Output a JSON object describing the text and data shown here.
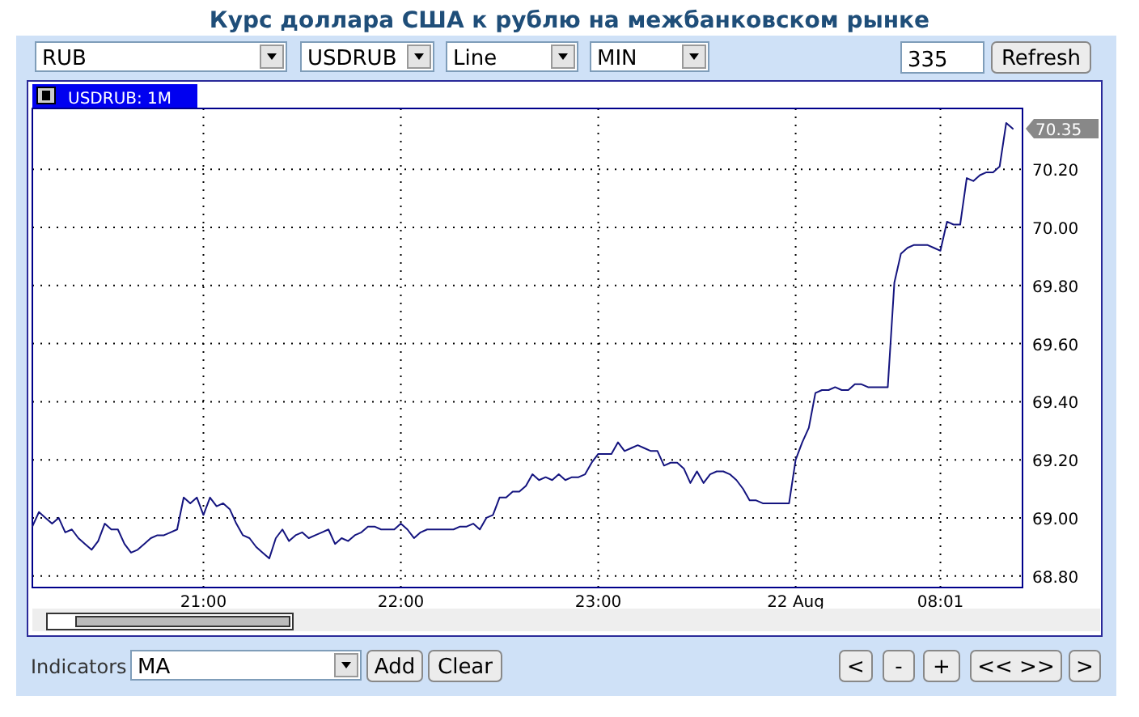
{
  "chart_data": {
    "type": "line",
    "title": "Курс доллара США к рублю на межбанковском рынке",
    "categories": [
      null,
      null,
      null,
      null,
      null,
      null,
      null,
      null,
      null,
      null,
      null,
      null,
      null,
      null,
      null,
      null,
      null,
      null,
      null,
      null,
      null,
      null,
      null,
      null,
      null,
      null,
      "21:00",
      null,
      null,
      null,
      null,
      null,
      null,
      null,
      null,
      null,
      null,
      null,
      null,
      null,
      null,
      null,
      null,
      null,
      null,
      null,
      null,
      null,
      null,
      null,
      null,
      null,
      null,
      null,
      null,
      null,
      "22:00",
      null,
      null,
      null,
      null,
      null,
      null,
      null,
      null,
      null,
      null,
      null,
      null,
      null,
      null,
      null,
      null,
      null,
      null,
      null,
      null,
      null,
      null,
      null,
      null,
      null,
      null,
      null,
      null,
      null,
      "23:00",
      null,
      null,
      null,
      null,
      null,
      null,
      null,
      null,
      null,
      null,
      null,
      null,
      null,
      null,
      null,
      null,
      null,
      null,
      null,
      null,
      null,
      null,
      null,
      null,
      null,
      null,
      null,
      null,
      null,
      "22 Aug",
      null,
      null,
      null,
      null,
      null,
      null,
      null,
      null,
      null,
      null,
      null,
      null,
      null,
      null,
      null,
      null,
      null,
      null,
      null,
      null,
      null,
      "08:01",
      null,
      null,
      null,
      null,
      null,
      null,
      null,
      null,
      null,
      null,
      null
    ],
    "series": [
      {
        "color": "#14147f",
        "values": [
          68.97,
          69.02,
          69.0,
          68.98,
          69.0,
          68.95,
          68.96,
          68.93,
          68.91,
          68.89,
          68.92,
          68.98,
          68.96,
          68.96,
          68.91,
          68.88,
          68.89,
          68.91,
          68.93,
          68.94,
          68.94,
          68.95,
          68.96,
          69.07,
          69.05,
          69.07,
          69.01,
          69.07,
          69.04,
          69.05,
          69.03,
          68.98,
          68.94,
          68.93,
          68.9,
          68.88,
          68.86,
          68.93,
          68.96,
          68.92,
          68.94,
          68.95,
          68.93,
          68.94,
          68.95,
          68.96,
          68.91,
          68.93,
          68.92,
          68.94,
          68.95,
          68.97,
          68.97,
          68.96,
          68.96,
          68.96,
          68.98,
          68.96,
          68.93,
          68.95,
          68.96,
          68.96,
          68.96,
          68.96,
          68.96,
          68.97,
          68.97,
          68.98,
          68.96,
          69.0,
          69.01,
          69.07,
          69.07,
          69.09,
          69.09,
          69.11,
          69.15,
          69.13,
          69.14,
          69.13,
          69.15,
          69.13,
          69.14,
          69.14,
          69.15,
          69.19,
          69.22,
          69.22,
          69.22,
          69.26,
          69.23,
          69.24,
          69.25,
          69.24,
          69.23,
          69.23,
          69.18,
          69.19,
          69.19,
          69.17,
          69.12,
          69.16,
          69.12,
          69.15,
          69.16,
          69.16,
          69.15,
          69.13,
          69.1,
          69.06,
          69.06,
          69.05,
          69.05,
          69.05,
          69.05,
          69.05,
          69.2,
          69.26,
          69.31,
          69.43,
          69.44,
          69.44,
          69.45,
          69.44,
          69.44,
          69.46,
          69.46,
          69.45,
          69.45,
          69.45,
          69.45,
          69.81,
          69.91,
          69.93,
          69.94,
          69.94,
          69.94,
          69.93,
          69.92,
          70.02,
          70.01,
          70.01,
          70.17,
          70.16,
          70.18,
          70.19,
          70.19,
          70.21,
          70.36,
          70.34
        ]
      }
    ],
    "ylim": [
      68.76,
      70.41
    ],
    "yticks": [
      {
        "value": 68.8,
        "label": "68.80"
      },
      {
        "value": 69.0,
        "label": "69.00"
      },
      {
        "value": 69.2,
        "label": "69.20"
      },
      {
        "value": 69.4,
        "label": "69.40"
      },
      {
        "value": 69.6,
        "label": "69.60"
      },
      {
        "value": 69.8,
        "label": "69.80"
      },
      {
        "value": 70.0,
        "label": "70.00"
      },
      {
        "value": 70.2,
        "label": "70.20"
      }
    ],
    "grid": true,
    "line_style": "solid",
    "marker": "none",
    "annotations": [
      "70.35",
      "USDRUB: 1M",
      "RUB",
      "USDRUB",
      "Line",
      "MIN",
      "335",
      "Refresh",
      "Indicators",
      "MA",
      "Add",
      "Clear",
      "<",
      "-",
      "+",
      "<< >>",
      ">"
    ]
  }
}
